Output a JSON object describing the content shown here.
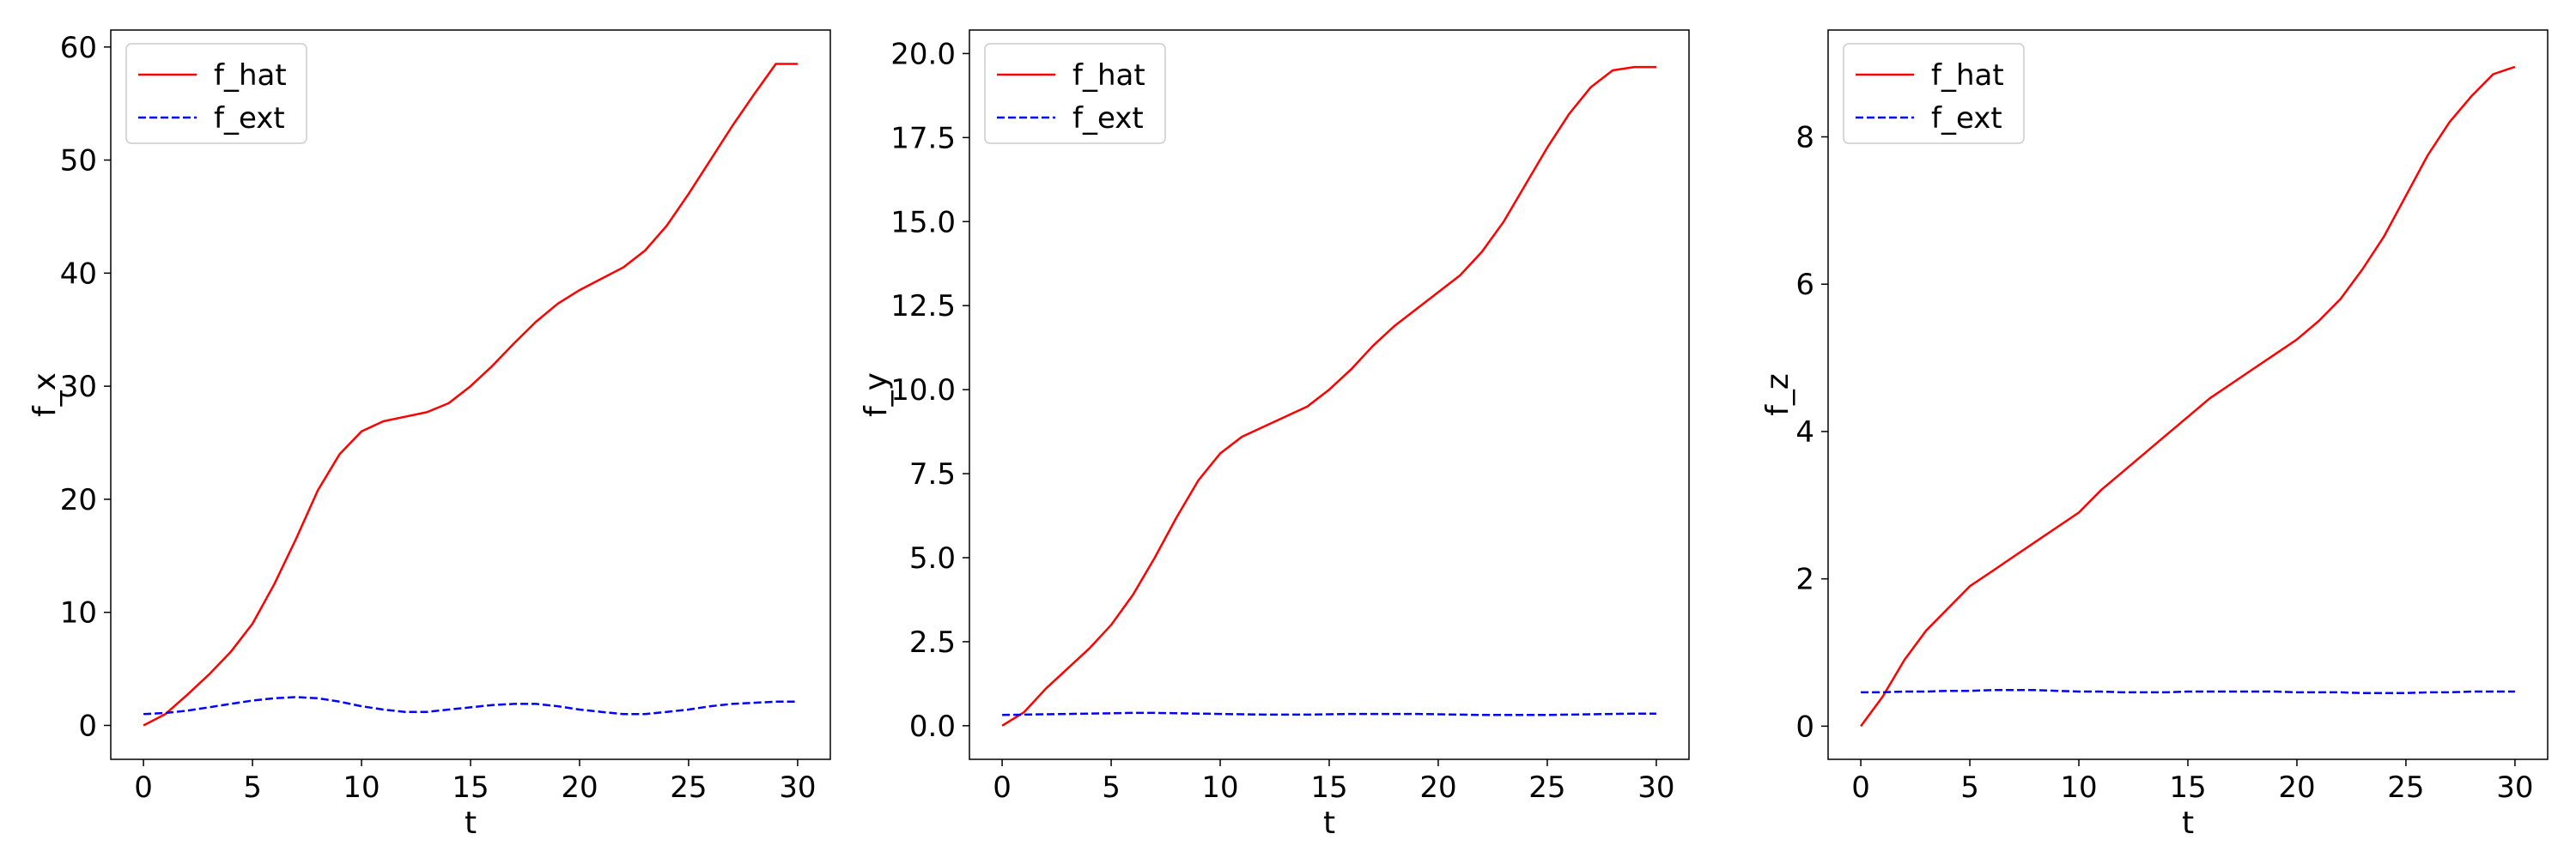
{
  "chart_data": [
    {
      "type": "line",
      "xlabel": "t",
      "ylabel": "f_x",
      "xlim": [
        -1.5,
        31.5
      ],
      "ylim": [
        -3,
        61.5
      ],
      "xticks": [
        0,
        5,
        10,
        15,
        20,
        25,
        30
      ],
      "yticks": [
        0,
        10,
        20,
        30,
        40,
        50,
        60
      ],
      "yticks_decimals": 0,
      "grid": false,
      "legend": "top-left",
      "series": [
        {
          "name": "f_hat",
          "color": "#ff0000",
          "dash": "solid",
          "x": [
            0,
            1,
            2,
            3,
            4,
            5,
            6,
            7,
            8,
            9,
            10,
            11,
            12,
            13,
            14,
            15,
            16,
            17,
            18,
            19,
            20,
            21,
            22,
            23,
            24,
            25,
            26,
            27,
            28,
            29,
            30
          ],
          "y": [
            0,
            1.0,
            2.7,
            4.5,
            6.5,
            9.0,
            12.5,
            16.5,
            20.8,
            24.0,
            26.0,
            26.9,
            27.3,
            27.7,
            28.5,
            30.0,
            31.8,
            33.8,
            35.7,
            37.3,
            38.5,
            39.5,
            40.5,
            42.0,
            44.2,
            47.0,
            50.0,
            53.0,
            55.8,
            58.5,
            58.5
          ]
        },
        {
          "name": "f_ext",
          "color": "#0000ff",
          "dash": "dashed",
          "x": [
            0,
            1,
            2,
            3,
            4,
            5,
            6,
            7,
            8,
            9,
            10,
            11,
            12,
            13,
            14,
            15,
            16,
            17,
            18,
            19,
            20,
            21,
            22,
            23,
            24,
            25,
            26,
            27,
            28,
            29,
            30
          ],
          "y": [
            1.0,
            1.1,
            1.3,
            1.6,
            1.9,
            2.2,
            2.4,
            2.5,
            2.4,
            2.1,
            1.7,
            1.4,
            1.2,
            1.2,
            1.4,
            1.6,
            1.8,
            1.9,
            1.9,
            1.7,
            1.4,
            1.2,
            1.0,
            1.0,
            1.2,
            1.4,
            1.7,
            1.9,
            2.0,
            2.1,
            2.1
          ]
        }
      ]
    },
    {
      "type": "line",
      "xlabel": "t",
      "ylabel": "f_y",
      "xlim": [
        -1.5,
        31.5
      ],
      "ylim": [
        -1.0,
        20.7
      ],
      "xticks": [
        0,
        5,
        10,
        15,
        20,
        25,
        30
      ],
      "yticks": [
        0,
        2.5,
        5,
        7.5,
        10,
        12.5,
        15,
        17.5,
        20
      ],
      "yticks_decimals": 1,
      "grid": false,
      "legend": "top-left",
      "series": [
        {
          "name": "f_hat",
          "color": "#ff0000",
          "dash": "solid",
          "x": [
            0,
            1,
            2,
            3,
            4,
            5,
            6,
            7,
            8,
            9,
            10,
            11,
            12,
            13,
            14,
            15,
            16,
            17,
            18,
            19,
            20,
            21,
            22,
            23,
            24,
            25,
            26,
            27,
            28,
            29,
            30
          ],
          "y": [
            0,
            0.4,
            1.1,
            1.7,
            2.3,
            3.0,
            3.9,
            5.0,
            6.2,
            7.3,
            8.1,
            8.6,
            8.9,
            9.2,
            9.5,
            10.0,
            10.6,
            11.3,
            11.9,
            12.4,
            12.9,
            13.4,
            14.1,
            15.0,
            16.1,
            17.2,
            18.2,
            19.0,
            19.5,
            19.6,
            19.6
          ]
        },
        {
          "name": "f_ext",
          "color": "#0000ff",
          "dash": "dashed",
          "x": [
            0,
            1,
            2,
            3,
            4,
            5,
            6,
            7,
            8,
            9,
            10,
            11,
            12,
            13,
            14,
            15,
            16,
            17,
            18,
            19,
            20,
            21,
            22,
            23,
            24,
            25,
            26,
            27,
            28,
            29,
            30
          ],
          "y": [
            0.32,
            0.33,
            0.34,
            0.35,
            0.36,
            0.37,
            0.38,
            0.38,
            0.37,
            0.36,
            0.35,
            0.34,
            0.33,
            0.33,
            0.33,
            0.34,
            0.35,
            0.35,
            0.35,
            0.35,
            0.34,
            0.33,
            0.32,
            0.32,
            0.32,
            0.32,
            0.33,
            0.34,
            0.35,
            0.36,
            0.36
          ]
        }
      ]
    },
    {
      "type": "line",
      "xlabel": "t",
      "ylabel": "f_z",
      "xlim": [
        -1.5,
        31.5
      ],
      "ylim": [
        -0.45,
        9.45
      ],
      "xticks": [
        0,
        5,
        10,
        15,
        20,
        25,
        30
      ],
      "yticks": [
        0,
        2,
        4,
        6,
        8
      ],
      "yticks_decimals": 0,
      "grid": false,
      "legend": "top-left",
      "series": [
        {
          "name": "f_hat",
          "color": "#ff0000",
          "dash": "solid",
          "x": [
            0,
            1,
            2,
            3,
            4,
            5,
            6,
            7,
            8,
            9,
            10,
            11,
            12,
            13,
            14,
            15,
            16,
            17,
            18,
            19,
            20,
            21,
            22,
            23,
            24,
            25,
            26,
            27,
            28,
            29,
            30
          ],
          "y": [
            0,
            0.4,
            0.9,
            1.3,
            1.6,
            1.9,
            2.1,
            2.3,
            2.5,
            2.7,
            2.9,
            3.2,
            3.45,
            3.7,
            3.95,
            4.2,
            4.45,
            4.65,
            4.85,
            5.05,
            5.25,
            5.5,
            5.8,
            6.2,
            6.65,
            7.2,
            7.75,
            8.2,
            8.55,
            8.85,
            8.95
          ]
        },
        {
          "name": "f_ext",
          "color": "#0000ff",
          "dash": "dashed",
          "x": [
            0,
            1,
            2,
            3,
            4,
            5,
            6,
            7,
            8,
            9,
            10,
            11,
            12,
            13,
            14,
            15,
            16,
            17,
            18,
            19,
            20,
            21,
            22,
            23,
            24,
            25,
            26,
            27,
            28,
            29,
            30
          ],
          "y": [
            0.46,
            0.46,
            0.47,
            0.47,
            0.48,
            0.48,
            0.49,
            0.49,
            0.49,
            0.48,
            0.47,
            0.47,
            0.46,
            0.46,
            0.46,
            0.47,
            0.47,
            0.47,
            0.47,
            0.47,
            0.46,
            0.46,
            0.46,
            0.45,
            0.45,
            0.45,
            0.46,
            0.46,
            0.47,
            0.47,
            0.47
          ]
        }
      ]
    }
  ]
}
